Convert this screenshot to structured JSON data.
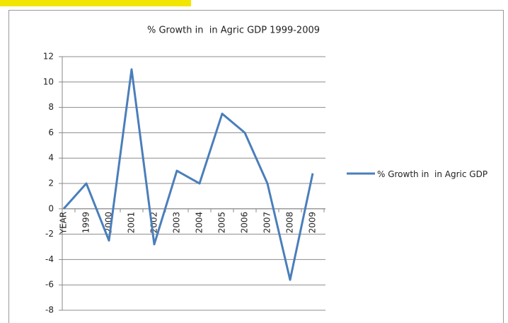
{
  "chart_data": {
    "type": "line",
    "title": "% Growth in  in Agric GDP 1999-2009",
    "categories": [
      "YEAR",
      "1999",
      "2000",
      "2001",
      "2002",
      "2003",
      "2004",
      "2005",
      "2006",
      "2007",
      "2008",
      "2009"
    ],
    "series": [
      {
        "name": "% Growth in  in Agric GDP",
        "color": "#4a7ebb",
        "values": [
          0,
          2,
          -2.5,
          11,
          -2.8,
          3,
          2,
          7.5,
          6,
          2,
          -5.6,
          2.8
        ]
      }
    ],
    "ylim": [
      -8,
      12
    ],
    "yticks": [
      -8,
      -6,
      -4,
      -2,
      0,
      2,
      4,
      6,
      8,
      10,
      12
    ],
    "grid": true,
    "legend": "right"
  }
}
